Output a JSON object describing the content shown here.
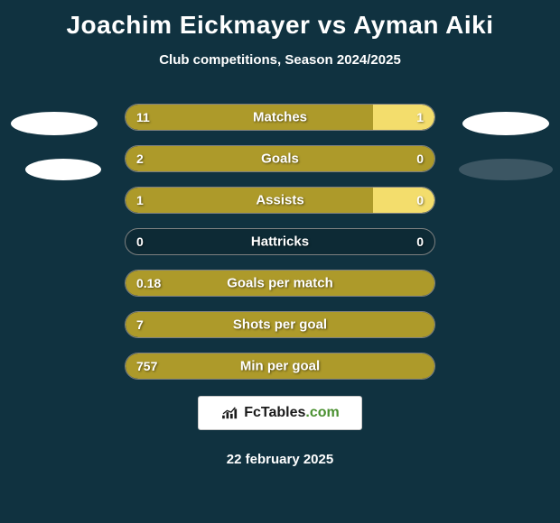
{
  "header": {
    "title": "Joachim Eickmayer vs Ayman Aiki",
    "subtitle": "Club competitions, Season 2024/2025",
    "title_fontsize": 28,
    "subtitle_fontsize": 15,
    "title_color": "#ffffff"
  },
  "background_color": "#103240",
  "bar_colors": {
    "left": "#ad9a2a",
    "right": "#f3dd6c",
    "track": "#0d2a35",
    "border": "#7d8080"
  },
  "stats": [
    {
      "label": "Matches",
      "left_val": "11",
      "right_val": "1",
      "left_pct": 80,
      "right_pct": 20
    },
    {
      "label": "Goals",
      "left_val": "2",
      "right_val": "0",
      "left_pct": 100,
      "right_pct": 0
    },
    {
      "label": "Assists",
      "left_val": "1",
      "right_val": "0",
      "left_pct": 80,
      "right_pct": 20
    },
    {
      "label": "Hattricks",
      "left_val": "0",
      "right_val": "0",
      "left_pct": 0,
      "right_pct": 0
    },
    {
      "label": "Goals per match",
      "left_val": "0.18",
      "right_val": "",
      "left_pct": 100,
      "right_pct": 0
    },
    {
      "label": "Shots per goal",
      "left_val": "7",
      "right_val": "",
      "left_pct": 100,
      "right_pct": 0
    },
    {
      "label": "Min per goal",
      "left_val": "757",
      "right_val": "",
      "left_pct": 100,
      "right_pct": 0
    }
  ],
  "ellipses": {
    "tl_color": "#ffffff",
    "bl_color": "#ffffff",
    "tr_color": "#ffffff",
    "br_color": "#3c5663"
  },
  "logo": {
    "text_fc": "FcTables",
    "text_com": ".com",
    "fc_color": "#1a1a1a",
    "com_color": "#4a9030",
    "bg_color": "#ffffff"
  },
  "footer": {
    "date": "22 february 2025"
  }
}
